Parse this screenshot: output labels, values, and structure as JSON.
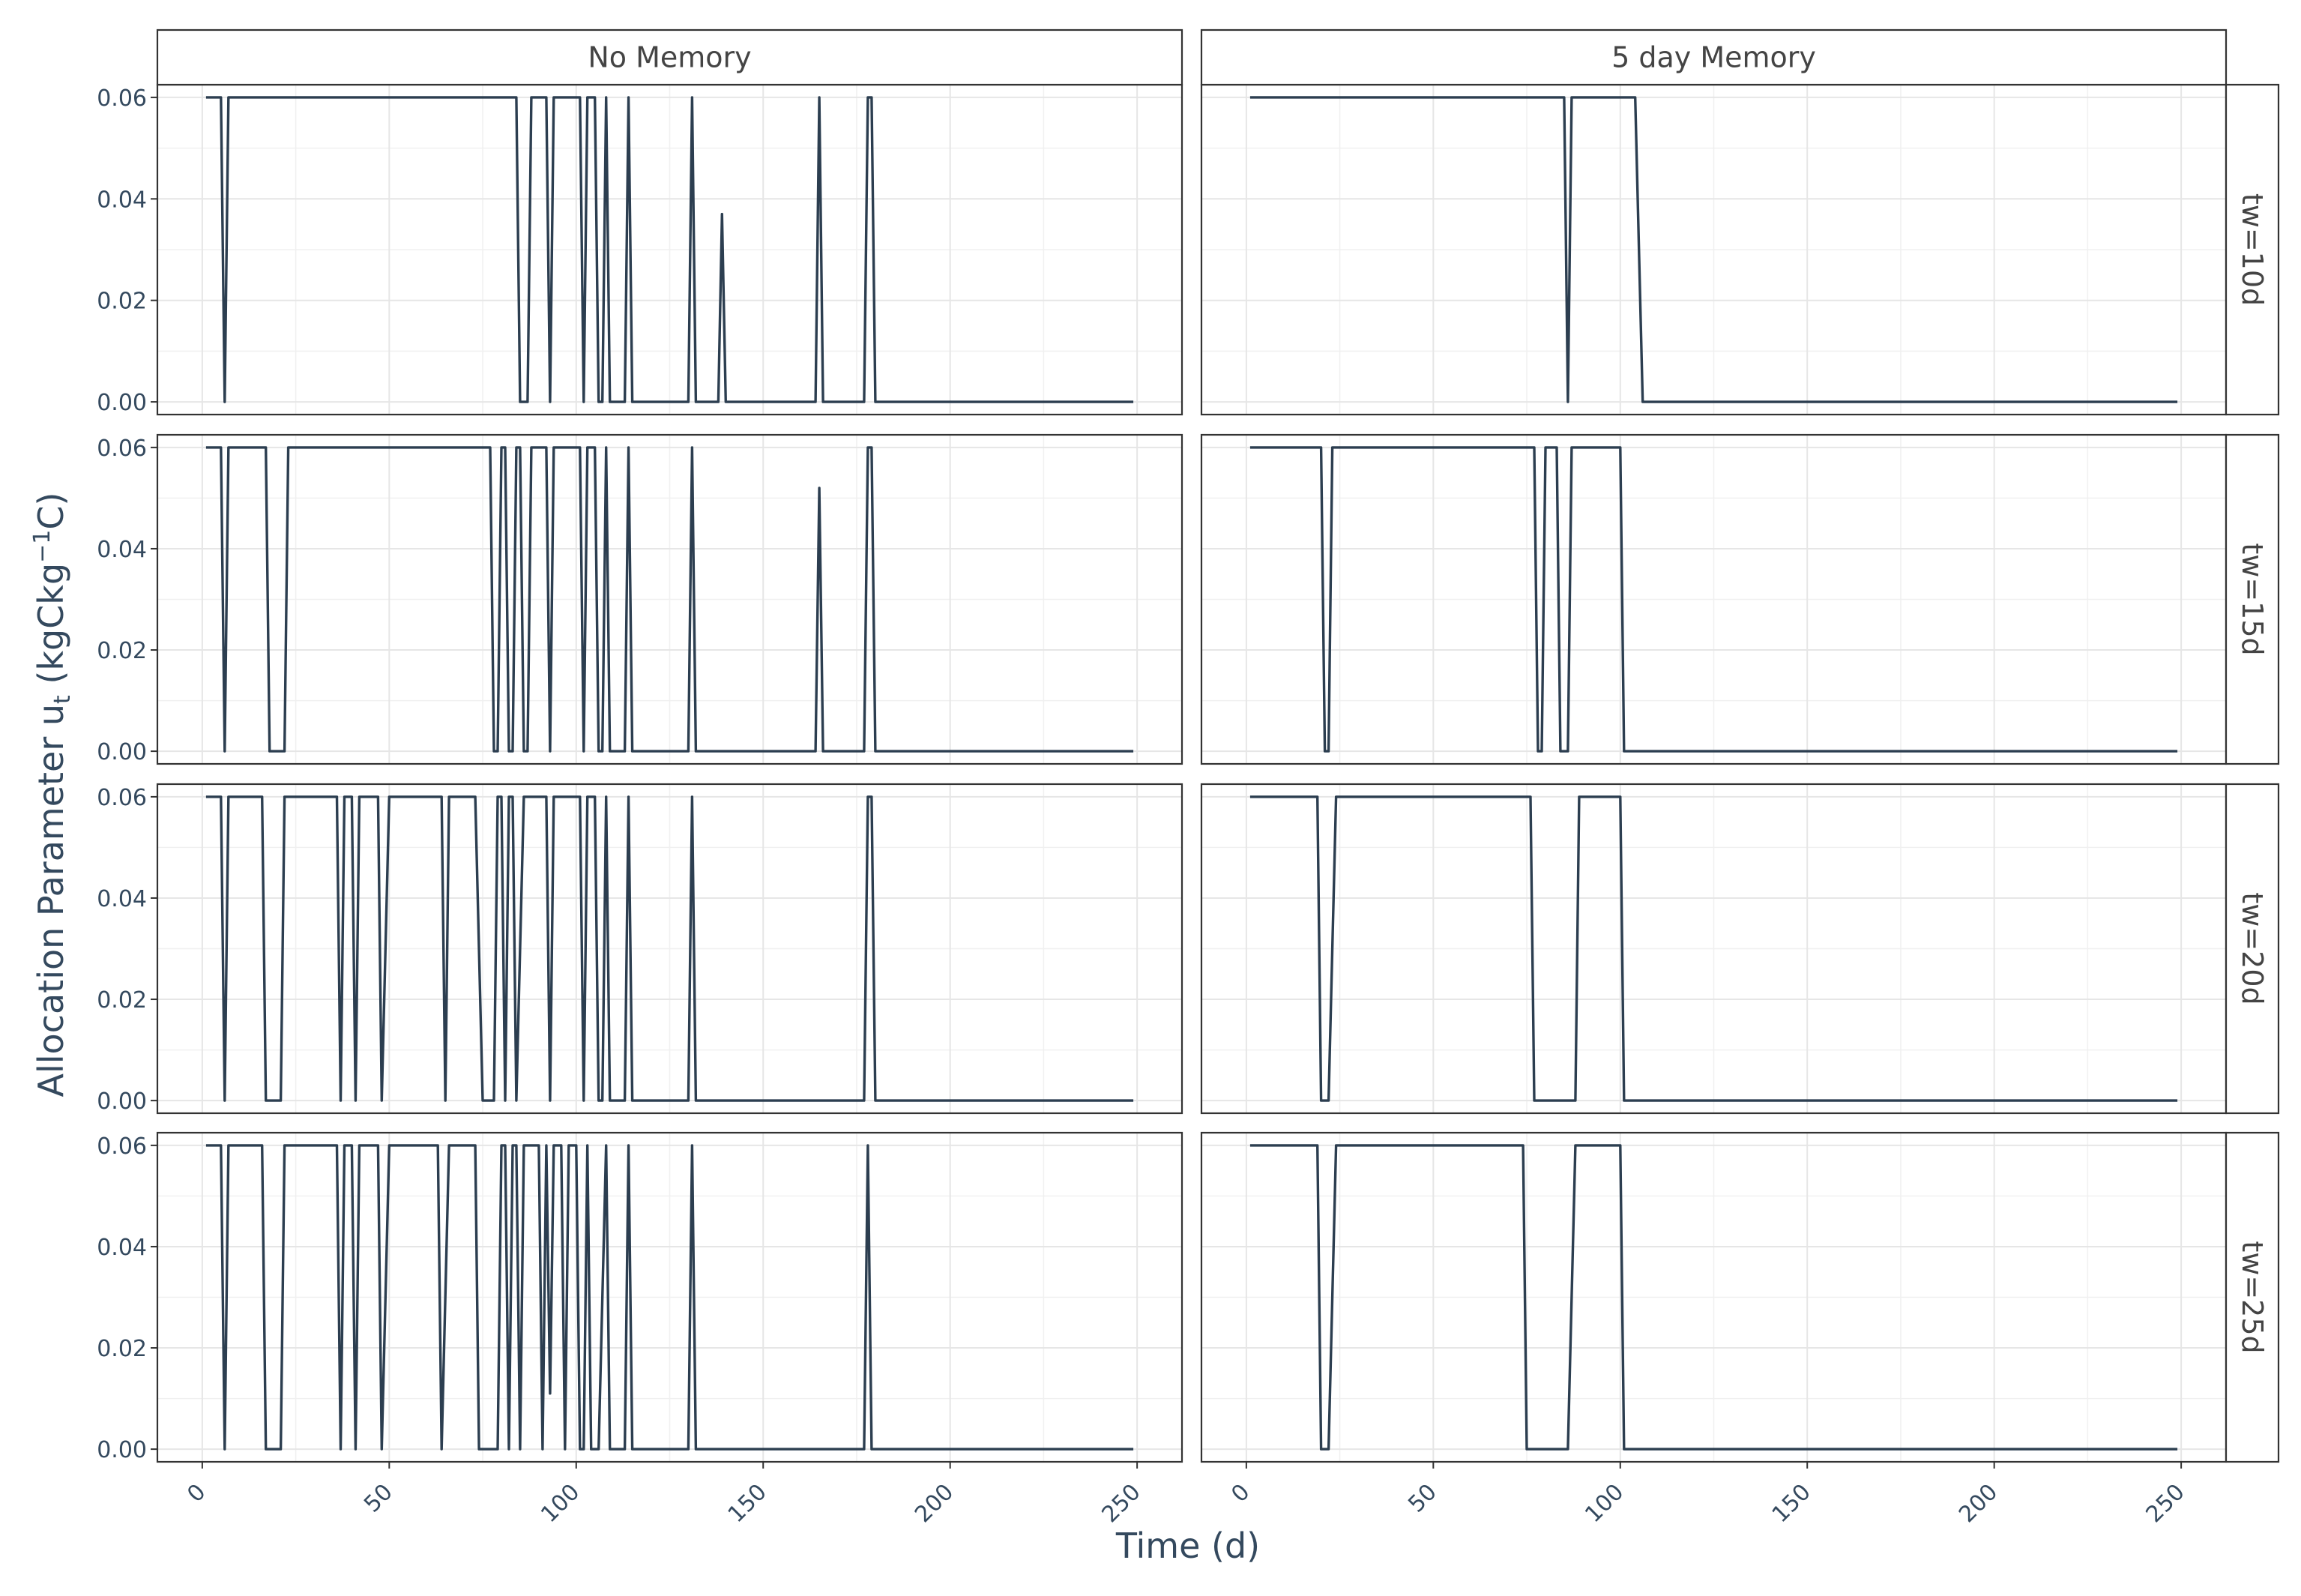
{
  "chart_data": {
    "type": "line",
    "xlabel": "Time (d)",
    "ylabel_main": "Allocation Parameter u",
    "ylabel_sub": "t",
    "ylabel_unit_pre": " (kgCkg",
    "ylabel_unit_sup": "−1",
    "ylabel_unit_post": "C)",
    "xlim": [
      -12,
      262
    ],
    "ylim": [
      -0.0025,
      0.0625
    ],
    "xticks": [
      0,
      50,
      100,
      150,
      200,
      250
    ],
    "xtick_labels": [
      "0",
      "50",
      "100",
      "150",
      "200",
      "250"
    ],
    "yticks": [
      0,
      0.02,
      0.04,
      0.06
    ],
    "ytick_labels": [
      "0.00",
      "0.02",
      "0.04",
      "0.06"
    ],
    "grid": true,
    "columns": [
      "No Memory",
      "5 day Memory"
    ],
    "rows": [
      "tw=10d",
      "tw=15d",
      "tw=20d",
      "tw=25d"
    ],
    "line_color": "#2c3e50",
    "panels": [
      {
        "column": "No Memory",
        "row": "tw=10d",
        "series": [
          [
            1,
            0.06
          ],
          [
            5,
            0.06
          ],
          [
            6,
            0
          ],
          [
            7,
            0.06
          ],
          [
            84,
            0.06
          ],
          [
            85,
            0
          ],
          [
            87,
            0
          ],
          [
            88,
            0.06
          ],
          [
            92,
            0.06
          ],
          [
            93,
            0
          ],
          [
            94,
            0.06
          ],
          [
            101,
            0.06
          ],
          [
            102,
            0
          ],
          [
            103,
            0.06
          ],
          [
            105,
            0.06
          ],
          [
            106,
            0
          ],
          [
            107,
            0
          ],
          [
            108,
            0.06
          ],
          [
            109,
            0
          ],
          [
            113,
            0
          ],
          [
            114,
            0.06
          ],
          [
            115,
            0
          ],
          [
            130,
            0
          ],
          [
            131,
            0.06
          ],
          [
            132,
            0
          ],
          [
            138,
            0
          ],
          [
            139,
            0.037
          ],
          [
            140,
            0
          ],
          [
            164,
            0
          ],
          [
            165,
            0.06
          ],
          [
            166,
            0
          ],
          [
            177,
            0
          ],
          [
            178,
            0.06
          ],
          [
            179,
            0.06
          ],
          [
            180,
            0
          ],
          [
            249,
            0
          ]
        ]
      },
      {
        "column": "5 day Memory",
        "row": "tw=10d",
        "series": [
          [
            1,
            0.06
          ],
          [
            85,
            0.06
          ],
          [
            86,
            0
          ],
          [
            87,
            0.06
          ],
          [
            104,
            0.06
          ],
          [
            106,
            0
          ],
          [
            249,
            0
          ]
        ]
      },
      {
        "column": "No Memory",
        "row": "tw=15d",
        "series": [
          [
            1,
            0.06
          ],
          [
            5,
            0.06
          ],
          [
            6,
            0
          ],
          [
            7,
            0.06
          ],
          [
            17,
            0.06
          ],
          [
            18,
            0
          ],
          [
            22,
            0
          ],
          [
            23,
            0.06
          ],
          [
            77,
            0.06
          ],
          [
            78,
            0
          ],
          [
            79,
            0
          ],
          [
            80,
            0.06
          ],
          [
            81,
            0.06
          ],
          [
            82,
            0
          ],
          [
            83,
            0
          ],
          [
            84,
            0.06
          ],
          [
            85,
            0.06
          ],
          [
            86,
            0
          ],
          [
            87,
            0
          ],
          [
            88,
            0.06
          ],
          [
            92,
            0.06
          ],
          [
            93,
            0
          ],
          [
            94,
            0.06
          ],
          [
            101,
            0.06
          ],
          [
            102,
            0
          ],
          [
            103,
            0.06
          ],
          [
            105,
            0.06
          ],
          [
            106,
            0
          ],
          [
            107,
            0
          ],
          [
            108,
            0.06
          ],
          [
            109,
            0
          ],
          [
            113,
            0
          ],
          [
            114,
            0.06
          ],
          [
            115,
            0
          ],
          [
            130,
            0
          ],
          [
            131,
            0.06
          ],
          [
            132,
            0
          ],
          [
            164,
            0
          ],
          [
            165,
            0.052
          ],
          [
            166,
            0
          ],
          [
            177,
            0
          ],
          [
            178,
            0.06
          ],
          [
            179,
            0.06
          ],
          [
            180,
            0
          ],
          [
            249,
            0
          ]
        ]
      },
      {
        "column": "5 day Memory",
        "row": "tw=15d",
        "series": [
          [
            1,
            0.06
          ],
          [
            20,
            0.06
          ],
          [
            21,
            0
          ],
          [
            22,
            0
          ],
          [
            23,
            0.06
          ],
          [
            77,
            0.06
          ],
          [
            78,
            0
          ],
          [
            79,
            0
          ],
          [
            80,
            0.06
          ],
          [
            83,
            0.06
          ],
          [
            84,
            0
          ],
          [
            86,
            0
          ],
          [
            87,
            0.06
          ],
          [
            100,
            0.06
          ],
          [
            101,
            0
          ],
          [
            249,
            0
          ]
        ]
      },
      {
        "column": "No Memory",
        "row": "tw=20d",
        "series": [
          [
            1,
            0.06
          ],
          [
            5,
            0.06
          ],
          [
            6,
            0
          ],
          [
            7,
            0.06
          ],
          [
            16,
            0.06
          ],
          [
            17,
            0
          ],
          [
            21,
            0
          ],
          [
            22,
            0.06
          ],
          [
            36,
            0.06
          ],
          [
            37,
            0
          ],
          [
            38,
            0.06
          ],
          [
            40,
            0.06
          ],
          [
            41,
            0
          ],
          [
            42,
            0.06
          ],
          [
            47,
            0.06
          ],
          [
            48,
            0
          ],
          [
            50,
            0.06
          ],
          [
            64,
            0.06
          ],
          [
            65,
            0
          ],
          [
            66,
            0.06
          ],
          [
            73,
            0.06
          ],
          [
            75,
            0
          ],
          [
            78,
            0
          ],
          [
            79,
            0.06
          ],
          [
            80,
            0.06
          ],
          [
            81,
            0
          ],
          [
            82,
            0.06
          ],
          [
            83,
            0.06
          ],
          [
            84,
            0
          ],
          [
            86,
            0.06
          ],
          [
            92,
            0.06
          ],
          [
            93,
            0
          ],
          [
            94,
            0.06
          ],
          [
            101,
            0.06
          ],
          [
            102,
            0
          ],
          [
            103,
            0.06
          ],
          [
            105,
            0.06
          ],
          [
            106,
            0
          ],
          [
            107,
            0
          ],
          [
            108,
            0.06
          ],
          [
            109,
            0
          ],
          [
            113,
            0
          ],
          [
            114,
            0.06
          ],
          [
            115,
            0
          ],
          [
            130,
            0
          ],
          [
            131,
            0.06
          ],
          [
            132,
            0
          ],
          [
            177,
            0
          ],
          [
            178,
            0.06
          ],
          [
            179,
            0.06
          ],
          [
            180,
            0
          ],
          [
            249,
            0
          ]
        ]
      },
      {
        "column": "5 day Memory",
        "row": "tw=20d",
        "series": [
          [
            1,
            0.06
          ],
          [
            19,
            0.06
          ],
          [
            20,
            0
          ],
          [
            22,
            0
          ],
          [
            24,
            0.06
          ],
          [
            76,
            0.06
          ],
          [
            77,
            0
          ],
          [
            88,
            0
          ],
          [
            89,
            0.06
          ],
          [
            100,
            0.06
          ],
          [
            101,
            0
          ],
          [
            249,
            0
          ]
        ]
      },
      {
        "column": "No Memory",
        "row": "tw=25d",
        "series": [
          [
            1,
            0.06
          ],
          [
            5,
            0.06
          ],
          [
            6,
            0
          ],
          [
            7,
            0.06
          ],
          [
            16,
            0.06
          ],
          [
            17,
            0
          ],
          [
            21,
            0
          ],
          [
            22,
            0.06
          ],
          [
            36,
            0.06
          ],
          [
            37,
            0
          ],
          [
            38,
            0.06
          ],
          [
            40,
            0.06
          ],
          [
            41,
            0
          ],
          [
            42,
            0.06
          ],
          [
            47,
            0.06
          ],
          [
            48,
            0
          ],
          [
            50,
            0.06
          ],
          [
            63,
            0.06
          ],
          [
            64,
            0
          ],
          [
            66,
            0.06
          ],
          [
            73,
            0.06
          ],
          [
            74,
            0
          ],
          [
            79,
            0
          ],
          [
            80,
            0.06
          ],
          [
            81,
            0.06
          ],
          [
            82,
            0
          ],
          [
            83,
            0.06
          ],
          [
            84,
            0.06
          ],
          [
            85,
            0
          ],
          [
            86,
            0.06
          ],
          [
            90,
            0.06
          ],
          [
            91,
            0
          ],
          [
            92,
            0.06
          ],
          [
            93,
            0.011
          ],
          [
            94,
            0.06
          ],
          [
            96,
            0.06
          ],
          [
            97,
            0
          ],
          [
            98,
            0.06
          ],
          [
            100,
            0.06
          ],
          [
            101,
            0
          ],
          [
            102,
            0
          ],
          [
            103,
            0.06
          ],
          [
            104,
            0
          ],
          [
            106,
            0
          ],
          [
            108,
            0.06
          ],
          [
            109,
            0
          ],
          [
            113,
            0
          ],
          [
            114,
            0.06
          ],
          [
            115,
            0
          ],
          [
            130,
            0
          ],
          [
            131,
            0.06
          ],
          [
            132,
            0
          ],
          [
            177,
            0
          ],
          [
            178,
            0.06
          ],
          [
            179,
            0
          ],
          [
            249,
            0
          ]
        ]
      },
      {
        "column": "5 day Memory",
        "row": "tw=25d",
        "series": [
          [
            1,
            0.06
          ],
          [
            19,
            0.06
          ],
          [
            20,
            0
          ],
          [
            22,
            0
          ],
          [
            24,
            0.06
          ],
          [
            74,
            0.06
          ],
          [
            75,
            0
          ],
          [
            86,
            0
          ],
          [
            88,
            0.06
          ],
          [
            100,
            0.06
          ],
          [
            101,
            0
          ],
          [
            249,
            0
          ]
        ]
      }
    ]
  }
}
